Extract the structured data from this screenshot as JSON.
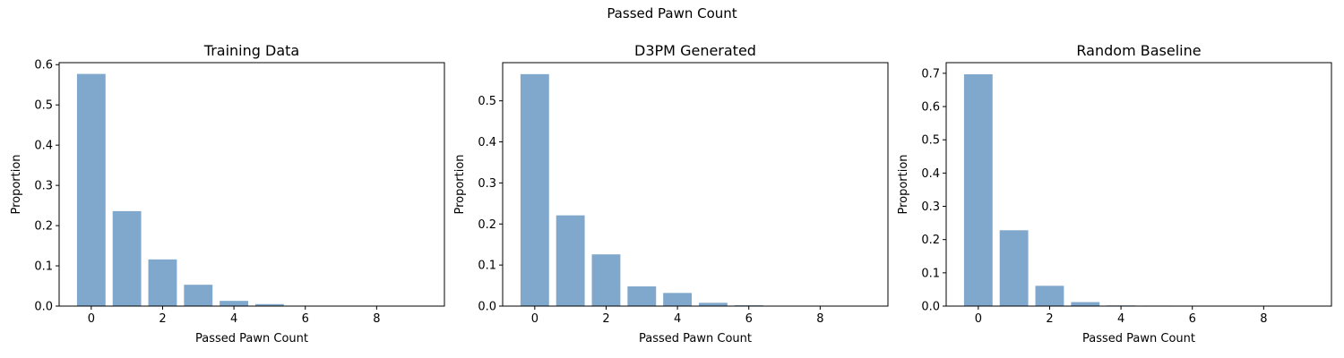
{
  "figure": {
    "title": "Passed Pawn Count"
  },
  "style": {
    "bar_color": "#7fa8cc",
    "axis_color": "#000000"
  },
  "chart_data": [
    {
      "type": "bar",
      "title": "Training Data",
      "xlabel": "Passed Pawn Count",
      "ylabel": "Proportion",
      "x": [
        0,
        1,
        2,
        3,
        4,
        5,
        6,
        7,
        8,
        9
      ],
      "values": [
        0.577,
        0.236,
        0.116,
        0.053,
        0.013,
        0.005,
        0.0005,
        0.0001,
        0,
        0
      ],
      "xlim": [
        -0.9,
        9.9
      ],
      "ylim": [
        0,
        0.605
      ],
      "xticks": [
        0,
        2,
        4,
        6,
        8
      ],
      "yticks": [
        0.0,
        0.1,
        0.2,
        0.3,
        0.4,
        0.5,
        0.6
      ],
      "ytick_labels": [
        "0.0",
        "0.1",
        "0.2",
        "0.3",
        "0.4",
        "0.5",
        "0.6"
      ],
      "grid": false
    },
    {
      "type": "bar",
      "title": "D3PM Generated",
      "xlabel": "Passed Pawn Count",
      "ylabel": "Proportion",
      "x": [
        0,
        1,
        2,
        3,
        4,
        5,
        6,
        7,
        8,
        9
      ],
      "values": [
        0.565,
        0.221,
        0.126,
        0.048,
        0.032,
        0.008,
        0.002,
        0.0003,
        0,
        0
      ],
      "xlim": [
        -0.9,
        9.9
      ],
      "ylim": [
        0,
        0.593
      ],
      "xticks": [
        0,
        2,
        4,
        6,
        8
      ],
      "yticks": [
        0.0,
        0.1,
        0.2,
        0.3,
        0.4,
        0.5
      ],
      "ytick_labels": [
        "0.0",
        "0.1",
        "0.2",
        "0.3",
        "0.4",
        "0.5"
      ],
      "grid": false
    },
    {
      "type": "bar",
      "title": "Random Baseline",
      "xlabel": "Passed Pawn Count",
      "ylabel": "Proportion",
      "x": [
        0,
        1,
        2,
        3,
        4,
        5,
        6,
        7,
        8,
        9
      ],
      "values": [
        0.697,
        0.228,
        0.061,
        0.012,
        0.002,
        0.0015,
        0.0003,
        0,
        0,
        0
      ],
      "xlim": [
        -0.9,
        9.9
      ],
      "ylim": [
        0,
        0.732
      ],
      "xticks": [
        0,
        2,
        4,
        6,
        8
      ],
      "yticks": [
        0.0,
        0.1,
        0.2,
        0.3,
        0.4,
        0.5,
        0.6,
        0.7
      ],
      "ytick_labels": [
        "0.0",
        "0.1",
        "0.2",
        "0.3",
        "0.4",
        "0.5",
        "0.6",
        "0.7"
      ],
      "grid": false
    }
  ]
}
